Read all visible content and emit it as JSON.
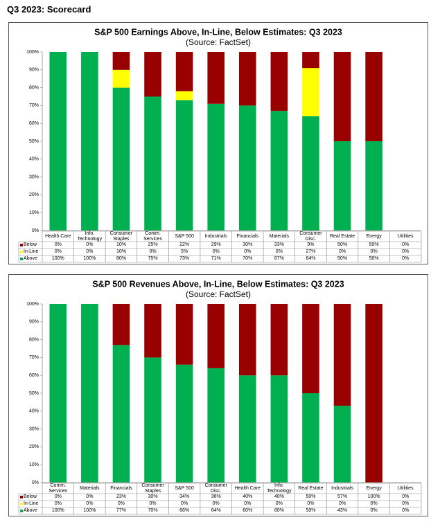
{
  "page_title": "Q3 2023: Scorecard",
  "chart_data": [
    {
      "type": "stacked_bar",
      "title": "S&P 500 Earnings Above, In-Line, Below Estimates: Q3 2023",
      "subtitle": "(Source: FactSet)",
      "categories": [
        "Health Care",
        "Info. Technology",
        "Consumer Staples",
        "Comm. Services",
        "S&P 500",
        "Industrials",
        "Financials",
        "Materials",
        "Consumer Disc.",
        "Real Estate",
        "Energy",
        "Utilities"
      ],
      "series": [
        {
          "name": "Below",
          "color": "#990000",
          "values": [
            0,
            0,
            10,
            25,
            22,
            29,
            30,
            33,
            9,
            50,
            50,
            0
          ],
          "value_labels": [
            "0%",
            "0%",
            "10%",
            "25%",
            "22%",
            "29%",
            "30%",
            "33%",
            "9%",
            "50%",
            "50%",
            "0%"
          ]
        },
        {
          "name": "In-Line",
          "color": "#ffff00",
          "values": [
            0,
            0,
            10,
            0,
            5,
            0,
            0,
            0,
            27,
            0,
            0,
            0
          ],
          "value_labels": [
            "0%",
            "0%",
            "10%",
            "0%",
            "5%",
            "0%",
            "0%",
            "0%",
            "27%",
            "0%",
            "0%",
            "0%"
          ]
        },
        {
          "name": "Above",
          "color": "#00b050",
          "values": [
            100,
            100,
            80,
            75,
            73,
            71,
            70,
            67,
            64,
            50,
            50,
            0
          ],
          "value_labels": [
            "100%",
            "100%",
            "80%",
            "75%",
            "73%",
            "71%",
            "70%",
            "67%",
            "64%",
            "50%",
            "50%",
            "0%"
          ]
        }
      ],
      "ylim": [
        0,
        100
      ],
      "yticks": [
        {
          "value": 0,
          "label": "0%"
        },
        {
          "value": 10,
          "label": "10%"
        },
        {
          "value": 20,
          "label": "20%"
        },
        {
          "value": 30,
          "label": "30%"
        },
        {
          "value": 40,
          "label": "40%"
        },
        {
          "value": 50,
          "label": "50%"
        },
        {
          "value": 60,
          "label": "60%"
        },
        {
          "value": 70,
          "label": "70%"
        },
        {
          "value": 80,
          "label": "80%"
        },
        {
          "value": 90,
          "label": "90%"
        },
        {
          "value": 100,
          "label": "100%"
        }
      ]
    },
    {
      "type": "stacked_bar",
      "title": "S&P 500 Revenues Above, In-Line, Below Estimates: Q3 2023",
      "subtitle": "(Source: FactSet)",
      "categories": [
        "Comm. Services",
        "Materials",
        "Financials",
        "Consumer Staples",
        "S&P 500",
        "Consumer Disc.",
        "Health Care",
        "Info. Technology",
        "Real Estate",
        "Industrials",
        "Energy",
        "Utilities"
      ],
      "series": [
        {
          "name": "Below",
          "color": "#990000",
          "values": [
            0,
            0,
            23,
            30,
            34,
            36,
            40,
            40,
            50,
            57,
            100,
            0
          ],
          "value_labels": [
            "0%",
            "0%",
            "23%",
            "30%",
            "34%",
            "36%",
            "40%",
            "40%",
            "50%",
            "57%",
            "100%",
            "0%"
          ]
        },
        {
          "name": "In-Line",
          "color": "#ffff00",
          "values": [
            0,
            0,
            0,
            0,
            0,
            0,
            0,
            0,
            0,
            0,
            0,
            0
          ],
          "value_labels": [
            "0%",
            "0%",
            "0%",
            "0%",
            "0%",
            "0%",
            "0%",
            "0%",
            "0%",
            "0%",
            "0%",
            "0%"
          ]
        },
        {
          "name": "Above",
          "color": "#00b050",
          "values": [
            100,
            100,
            77,
            70,
            66,
            64,
            60,
            60,
            50,
            43,
            0,
            0
          ],
          "value_labels": [
            "100%",
            "100%",
            "77%",
            "70%",
            "66%",
            "64%",
            "60%",
            "60%",
            "50%",
            "43%",
            "0%",
            "0%"
          ]
        }
      ],
      "ylim": [
        0,
        100
      ],
      "yticks": [
        {
          "value": 0,
          "label": "0%"
        },
        {
          "value": 10,
          "label": "10%"
        },
        {
          "value": 20,
          "label": "20%"
        },
        {
          "value": 30,
          "label": "30%"
        },
        {
          "value": 40,
          "label": "40%"
        },
        {
          "value": 50,
          "label": "50%"
        },
        {
          "value": 60,
          "label": "60%"
        },
        {
          "value": 70,
          "label": "70%"
        },
        {
          "value": 80,
          "label": "80%"
        },
        {
          "value": 90,
          "label": "90%"
        },
        {
          "value": 100,
          "label": "100%"
        }
      ]
    }
  ]
}
